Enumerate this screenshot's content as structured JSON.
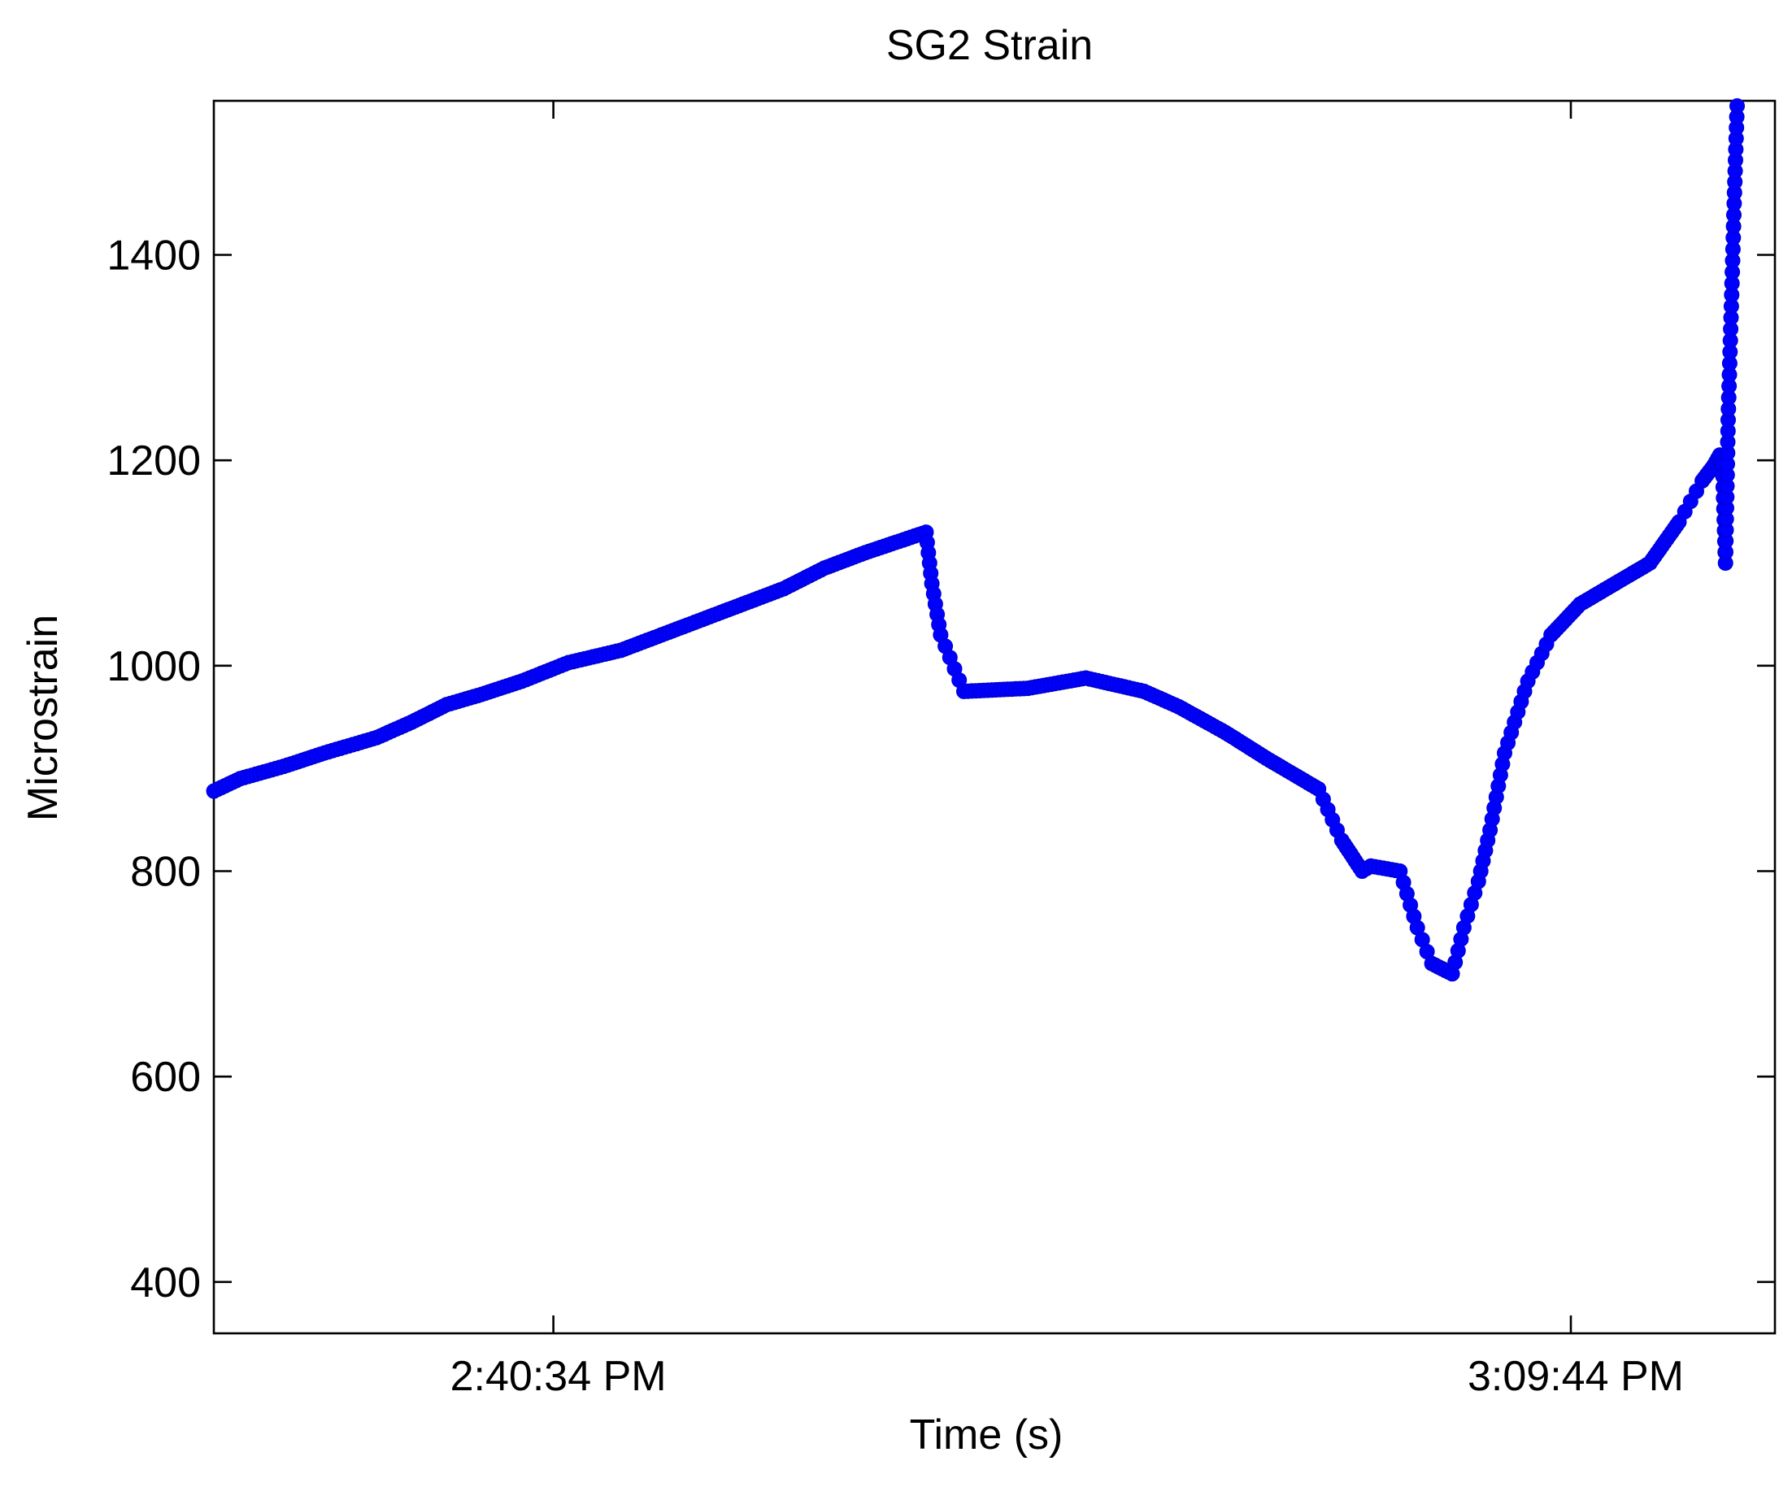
{
  "chart_data": {
    "type": "scatter",
    "title": "SG2 Strain",
    "xlabel": "Time (s)",
    "ylabel": "Microstrain",
    "xlim": [
      "2:30:50 PM",
      "3:15:35 PM"
    ],
    "ylim": [
      350,
      1550
    ],
    "x_ticks": [
      "2:40:34 PM",
      "3:09:44 PM"
    ],
    "y_ticks": [
      400,
      600,
      800,
      1000,
      1200,
      1400
    ],
    "grid": false,
    "legend": "none",
    "marker_color": "#0000ff",
    "series": [
      {
        "x": [
          "2:30:50 PM",
          "2:31:35 PM",
          "2:32:50 PM",
          "2:34:00 PM",
          "2:35:30 PM",
          "2:36:30 PM",
          "2:37:30 PM",
          "2:38:30 PM",
          "2:39:40 PM",
          "2:41:00 PM",
          "2:42:30 PM",
          "2:43:40 PM",
          "2:44:50 PM",
          "2:46:00 PM",
          "2:47:10 PM",
          "2:48:20 PM",
          "2:49:30 PM",
          "2:51:15 PM",
          "2:51:25 PM",
          "2:51:40 PM",
          "2:52:20 PM",
          "2:54:10 PM",
          "2:55:50 PM",
          "2:57:30 PM",
          "2:58:30 PM",
          "2:59:50 PM",
          "3:01:00 PM",
          "3:02:30 PM",
          "3:03:10 PM",
          "3:03:45 PM",
          "3:04:00 PM",
          "3:04:50 PM",
          "3:05:20 PM",
          "3:05:45 PM",
          "3:06:20 PM",
          "3:06:40 PM",
          "3:07:05 PM",
          "3:07:25 PM",
          "3:07:50 PM",
          "3:08:30 PM",
          "3:09:10 PM",
          "3:10:00 PM",
          "3:11:00 PM",
          "3:12:00 PM",
          "3:12:50 PM",
          "3:13:30 PM",
          "3:13:50 PM",
          "3:14:00 PM",
          "3:14:05 PM",
          "3:14:10 PM",
          "3:14:15 PM",
          "3:14:20 PM",
          "3:14:25 PM",
          "3:14:30 PM"
        ],
        "y": [
          878,
          890,
          902,
          915,
          930,
          945,
          962,
          972,
          985,
          1003,
          1015,
          1030,
          1045,
          1060,
          1075,
          1095,
          1110,
          1130,
          1080,
          1030,
          975,
          978,
          988,
          975,
          960,
          935,
          910,
          880,
          830,
          800,
          805,
          800,
          745,
          710,
          700,
          745,
          790,
          840,
          915,
          985,
          1030,
          1060,
          1080,
          1100,
          1140,
          1180,
          1195,
          1205,
          1195,
          1100,
          1250,
          1350,
          1450,
          1545
        ]
      }
    ]
  }
}
